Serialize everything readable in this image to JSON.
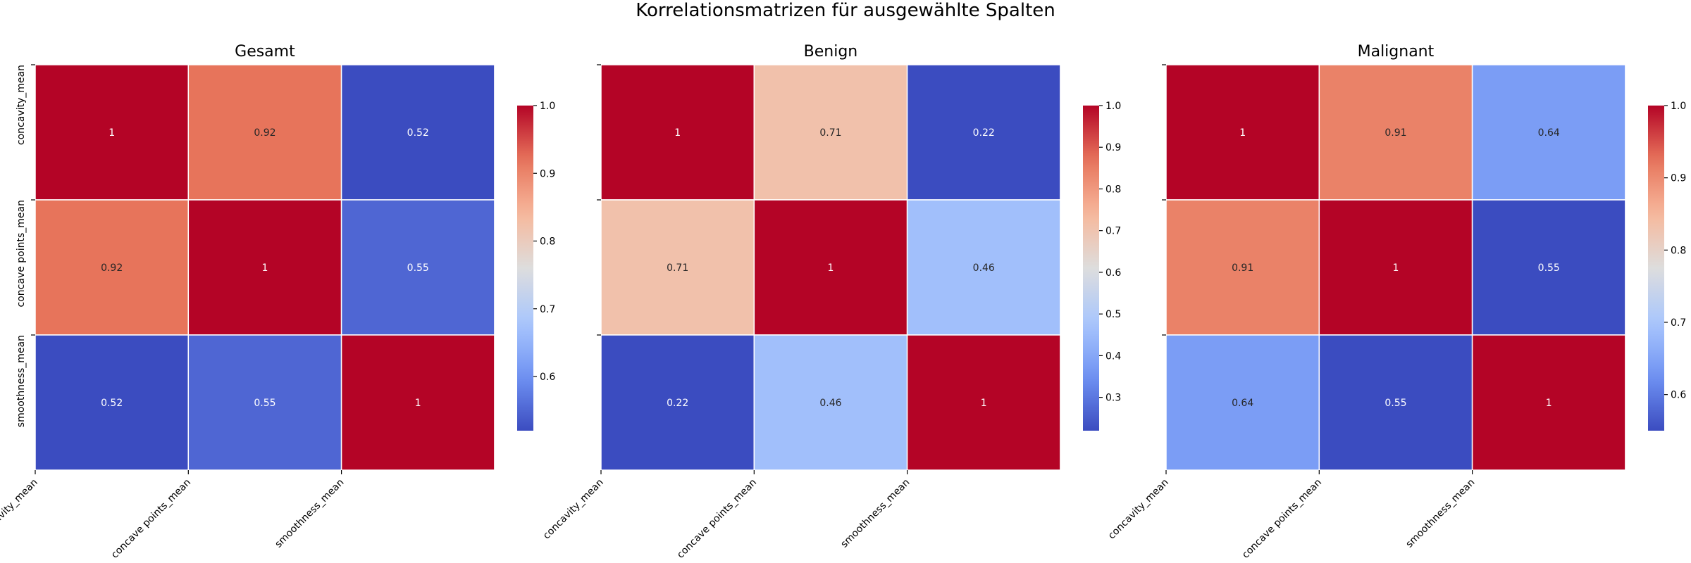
{
  "figure": {
    "title": "Korrelationsmatrizen für ausgewählte Spalten"
  },
  "colormap": {
    "name": "coolwarm",
    "stops": [
      "#3b4cc0",
      "#6f92f3",
      "#aac7fd",
      "#dddddd",
      "#f7b89c",
      "#e7745b",
      "#b40426"
    ],
    "annotation_light_text": "#ffffff",
    "annotation_dark_text": "#262626",
    "cell_border": "#ffffff"
  },
  "chart_data": [
    {
      "type": "heatmap",
      "title": "Gesamt",
      "rows": [
        "concavity_mean",
        "concave points_mean",
        "smoothness_mean"
      ],
      "cols": [
        "concavity_mean",
        "concave points_mean",
        "smoothness_mean"
      ],
      "values": [
        [
          1,
          0.92,
          0.52
        ],
        [
          0.92,
          1,
          0.55
        ],
        [
          0.52,
          0.55,
          1
        ]
      ],
      "annotations": [
        [
          "1",
          "0.92",
          "0.52"
        ],
        [
          "0.92",
          "1",
          "0.55"
        ],
        [
          "0.52",
          "0.55",
          "1"
        ]
      ],
      "show_y_labels": true,
      "colorbar": {
        "vmin": 0.52,
        "vmax": 1.0,
        "ticks": [
          0.6,
          0.7,
          0.8,
          0.9,
          1.0
        ],
        "tick_labels": [
          "0.6",
          "0.7",
          "0.8",
          "0.9",
          "1.0"
        ]
      }
    },
    {
      "type": "heatmap",
      "title": "Benign",
      "rows": [
        "concavity_mean",
        "concave points_mean",
        "smoothness_mean"
      ],
      "cols": [
        "concavity_mean",
        "concave points_mean",
        "smoothness_mean"
      ],
      "values": [
        [
          1,
          0.71,
          0.22
        ],
        [
          0.71,
          1,
          0.46
        ],
        [
          0.22,
          0.46,
          1
        ]
      ],
      "annotations": [
        [
          "1",
          "0.71",
          "0.22"
        ],
        [
          "0.71",
          "1",
          "0.46"
        ],
        [
          "0.22",
          "0.46",
          "1"
        ]
      ],
      "show_y_labels": false,
      "colorbar": {
        "vmin": 0.22,
        "vmax": 1.0,
        "ticks": [
          0.3,
          0.4,
          0.5,
          0.6,
          0.7,
          0.8,
          0.9,
          1.0
        ],
        "tick_labels": [
          "0.3",
          "0.4",
          "0.5",
          "0.6",
          "0.7",
          "0.8",
          "0.9",
          "1.0"
        ]
      }
    },
    {
      "type": "heatmap",
      "title": "Malignant",
      "rows": [
        "concavity_mean",
        "concave points_mean",
        "smoothness_mean"
      ],
      "cols": [
        "concavity_mean",
        "concave points_mean",
        "smoothness_mean"
      ],
      "values": [
        [
          1,
          0.91,
          0.64
        ],
        [
          0.91,
          1,
          0.55
        ],
        [
          0.64,
          0.55,
          1
        ]
      ],
      "annotations": [
        [
          "1",
          "0.91",
          "0.64"
        ],
        [
          "0.91",
          "1",
          "0.55"
        ],
        [
          "0.64",
          "0.55",
          "1"
        ]
      ],
      "show_y_labels": false,
      "colorbar": {
        "vmin": 0.55,
        "vmax": 1.0,
        "ticks": [
          0.6,
          0.7,
          0.8,
          0.9,
          1.0
        ],
        "tick_labels": [
          "0.6",
          "0.7",
          "0.8",
          "0.9",
          "1.0"
        ]
      }
    }
  ]
}
